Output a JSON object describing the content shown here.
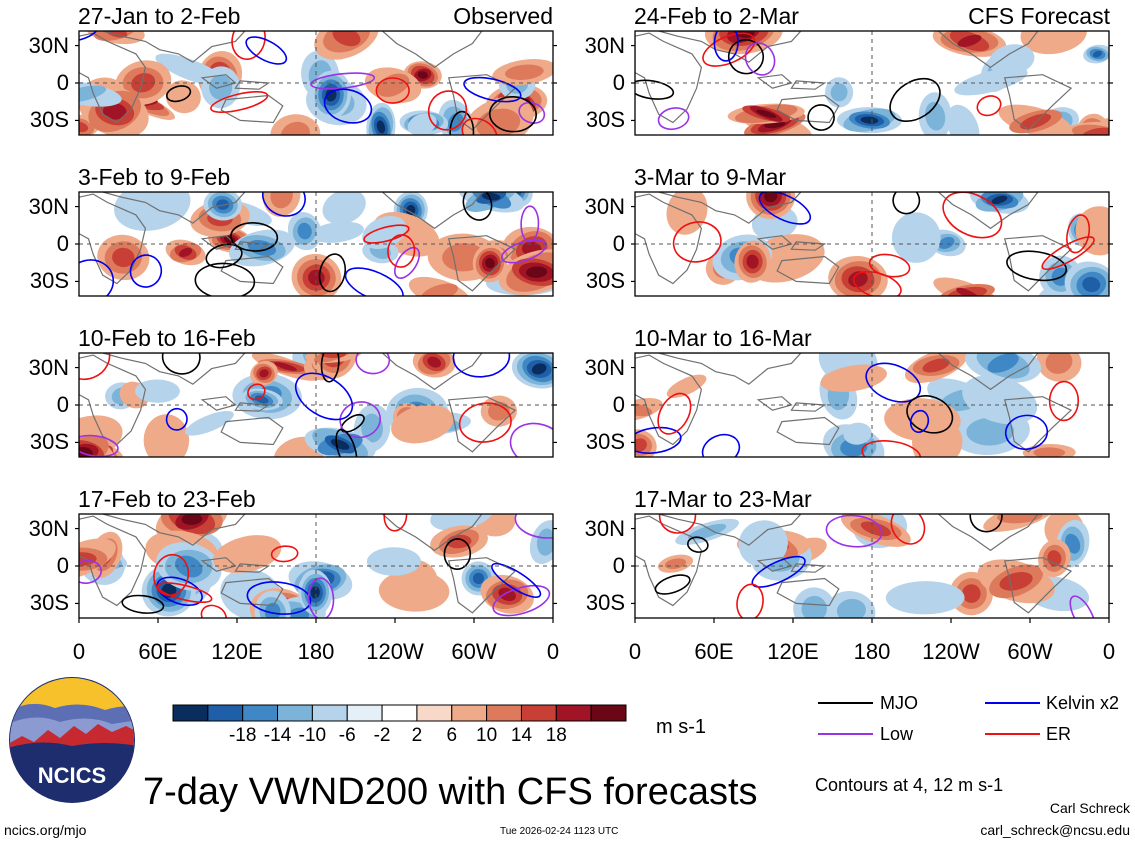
{
  "chart_data": {
    "type": "heatmap",
    "title": "7-day VWND200 with CFS forecasts",
    "variable": "VWND200",
    "units": "m s-1",
    "contour_note": "Contours at 4, 12 m s-1",
    "x_tick_labels": [
      "0",
      "60E",
      "120E",
      "180",
      "120W",
      "60W",
      "0"
    ],
    "y_tick_labels": [
      "30N",
      "0",
      "30S"
    ],
    "colorbar": {
      "ticks": [
        "-18",
        "-14",
        "-10",
        "-6",
        "-2",
        "2",
        "6",
        "10",
        "14",
        "18"
      ],
      "colors": [
        "#0b2d5e",
        "#1f5fa8",
        "#3f88c5",
        "#7bb3d9",
        "#b5d3ea",
        "#e4eff7",
        "#ffffff",
        "#f8d9c8",
        "#efaa8a",
        "#de7a5c",
        "#c73f35",
        "#a01425",
        "#6a0615"
      ]
    },
    "legend": [
      {
        "label": "MJO",
        "color": "#000000"
      },
      {
        "label": "Kelvin x2",
        "color": "#0000ee"
      },
      {
        "label": "Low",
        "color": "#9a32e6"
      },
      {
        "label": "ER",
        "color": "#ee1111"
      }
    ],
    "columns": [
      {
        "tag": "Observed",
        "panels": [
          "27-Jan to 2-Feb",
          "3-Feb to 9-Feb",
          "10-Feb to 16-Feb",
          "17-Feb to 23-Feb"
        ]
      },
      {
        "tag": "CFS Forecast",
        "panels": [
          "24-Feb to 2-Mar",
          "3-Mar to 9-Mar",
          "10-Mar to 16-Mar",
          "17-Mar to 23-Mar"
        ]
      }
    ]
  },
  "footer": {
    "logo_text": "NCICS",
    "left_url": "ncics.org/mjo",
    "timestamp": "Tue 2026-02-24 1123 UTC",
    "author": "Carl Schreck",
    "email": "carl_schreck@ncsu.edu"
  }
}
